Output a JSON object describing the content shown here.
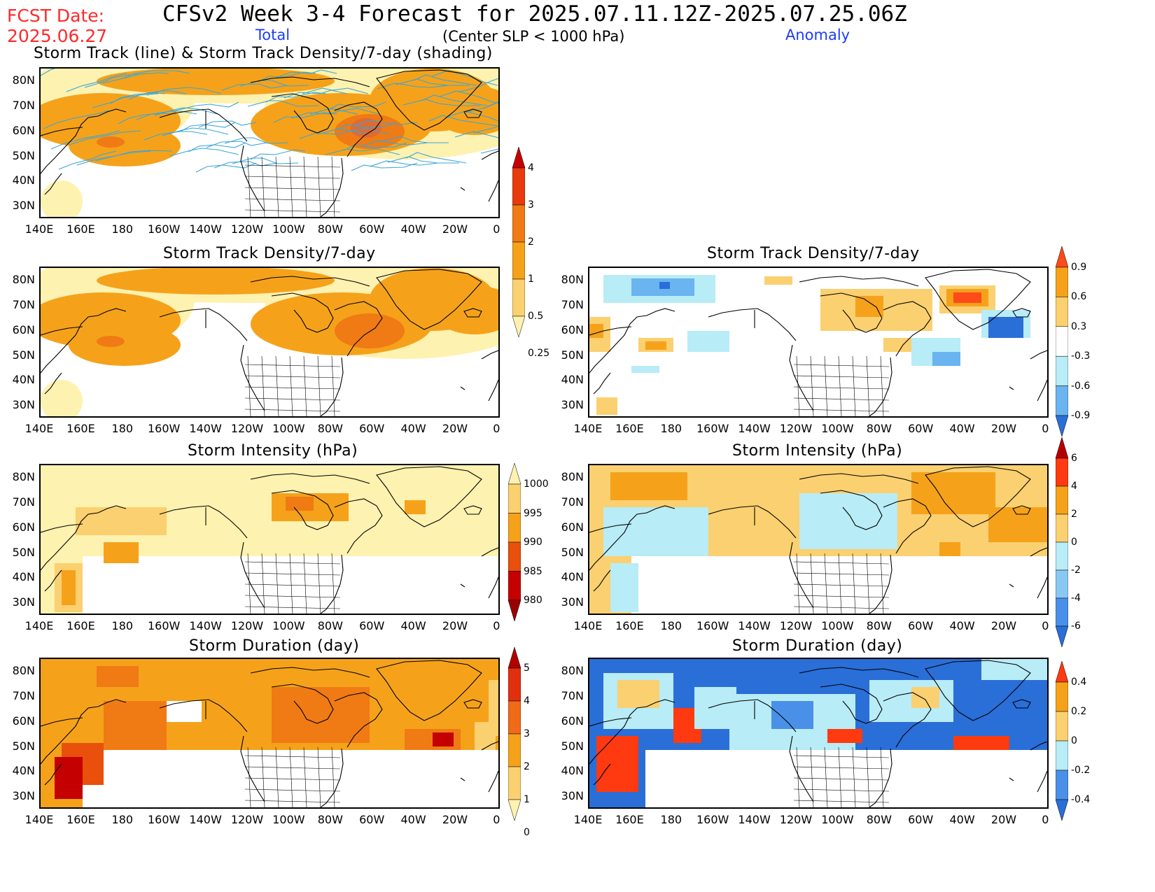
{
  "header": {
    "fcst_line1": "FCST Date:",
    "fcst_line2": "2025.06.27",
    "title": "CFSv2 Week 3-4 Forecast for 2025.07.11.12Z-2025.07.25.06Z",
    "total_label": "Total",
    "subtitle": "(Center SLP < 1000 hPa)",
    "anomaly_label": "Anomaly",
    "top_panel_title": "Storm Track (line) & Storm Track Density/7-day (shading)"
  },
  "axes": {
    "lat_labels": [
      "80N",
      "70N",
      "60N",
      "50N",
      "40N",
      "30N"
    ],
    "lon_labels": [
      "140E",
      "160E",
      "180",
      "160W",
      "140W",
      "120W",
      "100W",
      "80W",
      "60W",
      "40W",
      "20W",
      "0"
    ]
  },
  "panel_titles": {
    "density": "Storm Track Density/7-day",
    "intensity": "Storm Intensity (hPa)",
    "duration": "Storm Duration (day)"
  },
  "colorbars": {
    "density_total": {
      "labels": [
        "4",
        "3",
        "2",
        "1",
        "0.5",
        "0.25"
      ],
      "colors": [
        "#c40000",
        "#e83a0c",
        "#f07a14",
        "#f5a21a",
        "#fbd070",
        "#fdf2b0"
      ]
    },
    "density_anom": {
      "labels": [
        "0.9",
        "0.6",
        "0.3",
        "-0.3",
        "-0.6",
        "-0.9"
      ],
      "colors": [
        "#ff4a1a",
        "#f5a21a",
        "#fbd070",
        "#ffffff",
        "#b8ecf6",
        "#6ab4f0",
        "#2a6ed8"
      ]
    },
    "intensity_total": {
      "labels": [
        "1000",
        "995",
        "990",
        "985",
        "980"
      ],
      "colors": [
        "#fdf2b0",
        "#fbd070",
        "#f5a21a",
        "#e8500c",
        "#c40000",
        "#9a0000"
      ]
    },
    "intensity_anom": {
      "labels": [
        "6",
        "4",
        "2",
        "0",
        "-2",
        "-4",
        "-6"
      ],
      "colors": [
        "#b40000",
        "#ff3a10",
        "#f5a21a",
        "#fbd070",
        "#b8ecf6",
        "#8ac8f4",
        "#4a90e8",
        "#2a6ed8"
      ]
    },
    "duration_total": {
      "labels": [
        "5",
        "4",
        "3",
        "2",
        "1",
        "0"
      ],
      "colors": [
        "#b00000",
        "#e03010",
        "#f06a18",
        "#f5a21a",
        "#fbd070",
        "#fdf2b0"
      ]
    },
    "duration_anom": {
      "labels": [
        "0.4",
        "0.2",
        "0",
        "-0.2",
        "-0.4"
      ],
      "colors": [
        "#ff3a10",
        "#f5a21a",
        "#fbd070",
        "#b8ecf6",
        "#4a90e8",
        "#2a6ed8"
      ]
    }
  }
}
